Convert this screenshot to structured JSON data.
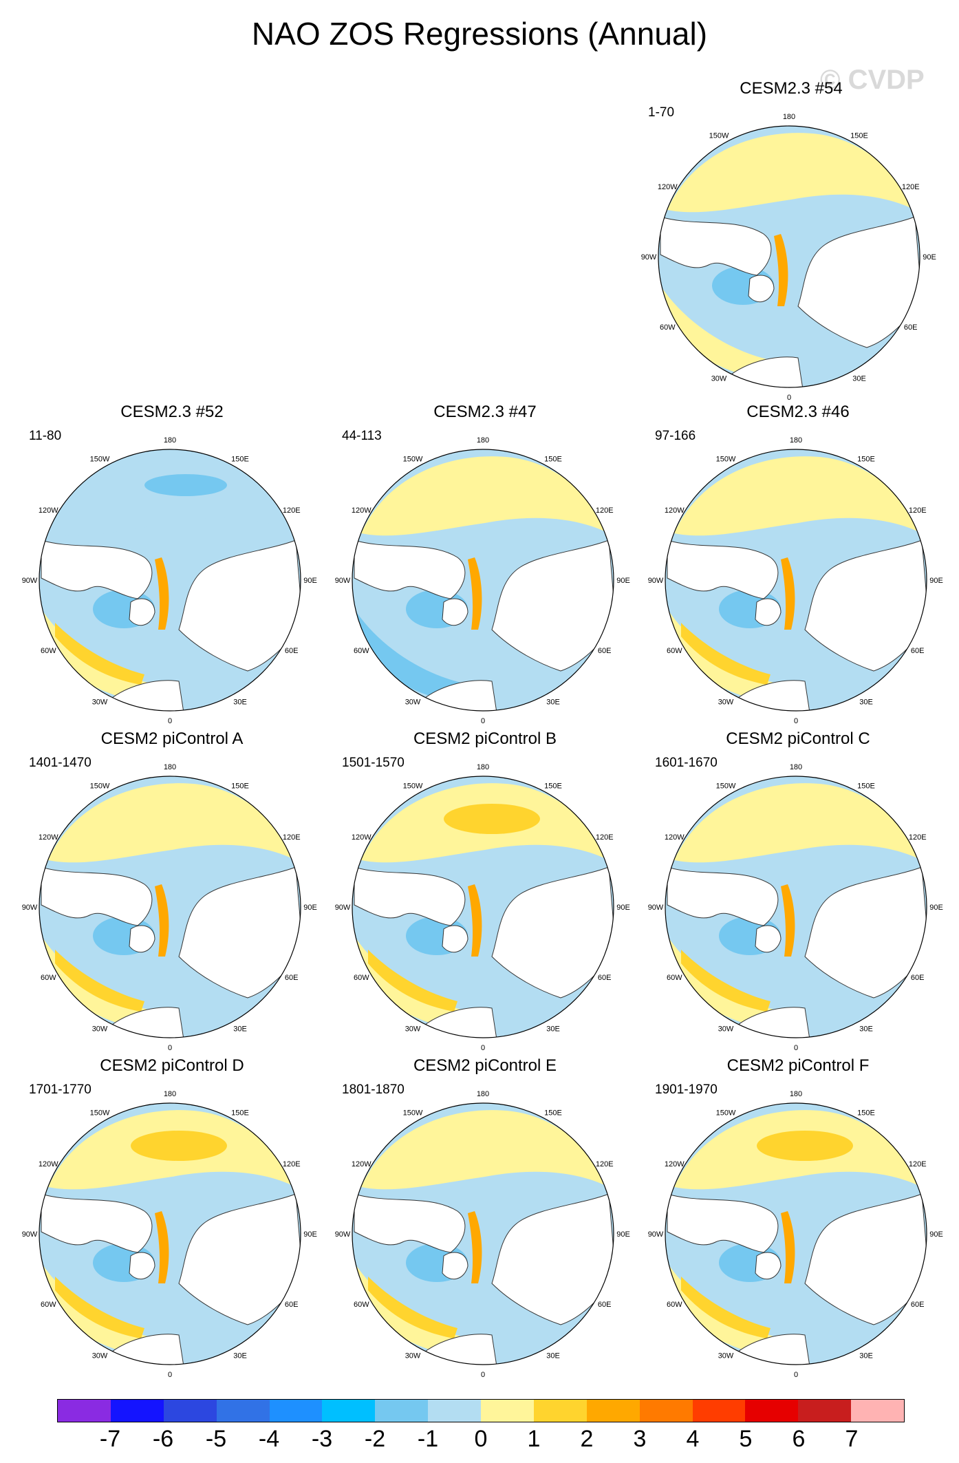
{
  "page_title": "NAO ZOS Regressions (Annual)",
  "watermark": "© CVDP",
  "map_labels": {
    "lon_180": "180",
    "lon_150W": "150W",
    "lon_150E": "150E",
    "lon_120W": "120W",
    "lon_120E": "120E",
    "lon_90W": "90W",
    "lon_90E": "90E",
    "lon_60W": "60W",
    "lon_60E": "60E",
    "lon_30W": "30W",
    "lon_30E": "30E",
    "lon_0": "0"
  },
  "panels": [
    {
      "title": "CESM2.3 #54",
      "years": "1-70"
    },
    {
      "title": "CESM2.3 #52",
      "years": "11-80"
    },
    {
      "title": "CESM2.3 #47",
      "years": "44-113"
    },
    {
      "title": "CESM2.3 #46",
      "years": "97-166"
    },
    {
      "title": "CESM2 piControl A",
      "years": "1401-1470"
    },
    {
      "title": "CESM2 piControl B",
      "years": "1501-1570"
    },
    {
      "title": "CESM2 piControl C",
      "years": "1601-1670"
    },
    {
      "title": "CESM2 piControl D",
      "years": "1701-1770"
    },
    {
      "title": "CESM2 piControl E",
      "years": "1801-1870"
    },
    {
      "title": "CESM2 piControl F",
      "years": "1901-1970"
    }
  ],
  "colorbar": {
    "colors": [
      "#8A2BE2",
      "#1414FF",
      "#2C47E0",
      "#3172E6",
      "#1E90FF",
      "#00BFFF",
      "#75C8F0",
      "#B3DDF2",
      "#FFF59A",
      "#FFD42E",
      "#FFA800",
      "#FF7A00",
      "#FF3D00",
      "#E60000",
      "#C81E1E",
      "#FFB3B3"
    ],
    "tick_labels": [
      "-7",
      "-6",
      "-5",
      "-4",
      "-3",
      "-2",
      "-1",
      "0",
      "1",
      "2",
      "3",
      "4",
      "5",
      "6",
      "7"
    ]
  },
  "colors": {
    "ocean_neg_light": "#B3DDF2",
    "ocean_neg": "#75C8F0",
    "ocean_pos_light": "#FFF59A",
    "ocean_pos": "#FFD42E",
    "ocean_pos_strong": "#FFA800",
    "land": "#ffffff",
    "coast": "#333333"
  }
}
